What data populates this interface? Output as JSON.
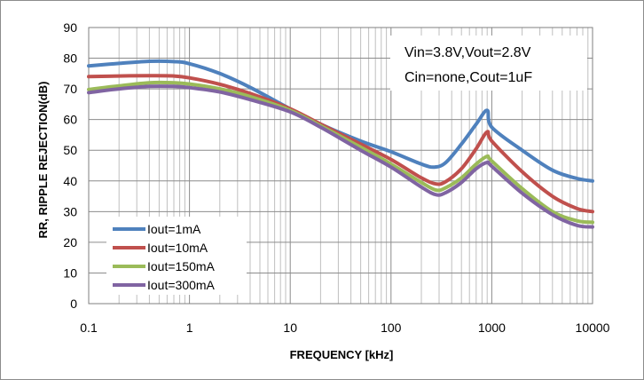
{
  "chart_data": {
    "type": "line",
    "xscale": "log",
    "xlabel": "FREQUENCY [kHz]",
    "ylabel": "RR, RIPPLE REJECTION(dB)",
    "xlim": [
      0.1,
      10000
    ],
    "ylim": [
      0,
      90
    ],
    "xticks": [
      "0.1",
      "1",
      "10",
      "100",
      "1000",
      "10000"
    ],
    "yticks": [
      "0",
      "10",
      "20",
      "30",
      "40",
      "50",
      "60",
      "70",
      "80",
      "90"
    ],
    "grid": true,
    "legend_position": "bottom-left",
    "annotations": [
      "Vin=3.8V,Vout=2.8V",
      "Cin=none,Cout=1uF"
    ],
    "series": [
      {
        "name": "Iout=1mA",
        "color": "#4f81bd",
        "x": [
          0.1,
          0.2,
          0.4,
          0.7,
          1,
          2,
          4,
          10,
          20,
          50,
          100,
          200,
          270,
          350,
          500,
          700,
          900,
          1000,
          2000,
          4000,
          7000,
          10000
        ],
        "y": [
          77.5,
          78.3,
          79.0,
          78.9,
          78.2,
          75.0,
          70.5,
          63.5,
          58.5,
          53.0,
          49.5,
          45.5,
          44.5,
          46.0,
          52.0,
          58.5,
          63.0,
          57.5,
          50.0,
          43.5,
          40.8,
          40.0
        ]
      },
      {
        "name": "Iout=10mA",
        "color": "#c0504d",
        "x": [
          0.1,
          0.2,
          0.4,
          0.7,
          1,
          2,
          4,
          10,
          20,
          50,
          100,
          200,
          280,
          350,
          500,
          700,
          900,
          1000,
          2000,
          4000,
          7000,
          10000
        ],
        "y": [
          74.0,
          74.2,
          74.3,
          74.2,
          73.6,
          71.5,
          68.5,
          63.5,
          58.5,
          52.0,
          47.0,
          41.0,
          39.0,
          39.8,
          44.0,
          50.5,
          56.0,
          53.0,
          43.0,
          35.0,
          31.0,
          30.0
        ]
      },
      {
        "name": "Iout=150mA",
        "color": "#9bbb59",
        "x": [
          0.1,
          0.2,
          0.4,
          0.7,
          1,
          2,
          4,
          10,
          20,
          50,
          100,
          200,
          280,
          350,
          500,
          700,
          900,
          1000,
          2000,
          4000,
          7000,
          10000
        ],
        "y": [
          69.8,
          71.0,
          72.0,
          72.0,
          71.6,
          70.0,
          67.5,
          63.0,
          58.0,
          51.0,
          45.5,
          39.5,
          37.0,
          37.8,
          41.0,
          45.5,
          48.0,
          46.5,
          37.5,
          30.0,
          27.0,
          26.5
        ]
      },
      {
        "name": "Iout=300mA",
        "color": "#8064a2",
        "x": [
          0.1,
          0.2,
          0.4,
          0.7,
          1,
          2,
          4,
          10,
          20,
          50,
          100,
          200,
          280,
          350,
          500,
          700,
          900,
          1000,
          2000,
          4000,
          7000,
          10000
        ],
        "y": [
          68.8,
          70.0,
          70.8,
          70.8,
          70.4,
          69.0,
          66.5,
          62.5,
          57.5,
          50.0,
          44.5,
          38.0,
          35.5,
          36.2,
          39.5,
          44.0,
          46.0,
          44.8,
          36.0,
          29.0,
          25.5,
          25.0
        ]
      }
    ]
  }
}
